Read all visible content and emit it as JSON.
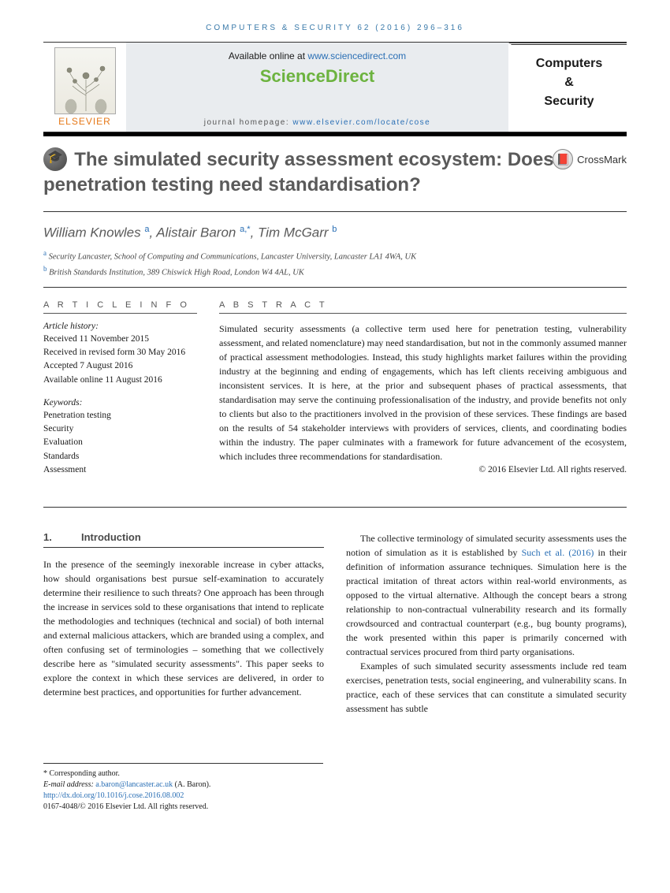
{
  "header": {
    "citation": "COMPUTERS & SECURITY 62 (2016) 296–316",
    "available_prefix": "Available online at ",
    "available_url": "www.sciencedirect.com",
    "sd_logo": "ScienceDirect",
    "homepage_prefix": "journal homepage: ",
    "homepage_url": "www.elsevier.com/locate/cose",
    "elsevier": "ELSEVIER",
    "journal_name_l1": "Computers",
    "journal_name_l2": "&",
    "journal_name_l3": "Security"
  },
  "title": "The simulated security assessment ecosystem: Does penetration testing need standardisation?",
  "crossmark": "CrossMark",
  "authors_html": "William Knowles <span class='sup'>a</span>, Alistair Baron <span class='sup'>a,*</span>, Tim McGarr <span class='sup'>b</span>",
  "affiliations": [
    {
      "sup": "a",
      "text": "Security Lancaster, School of Computing and Communications, Lancaster University, Lancaster LA1 4WA, UK"
    },
    {
      "sup": "b",
      "text": "British Standards Institution, 389 Chiswick High Road, London W4 4AL, UK"
    }
  ],
  "info": {
    "heading": "A R T I C L E   I N F O",
    "history_label": "Article history:",
    "history": "Received 11 November 2015\nReceived in revised form 30 May 2016\nAccepted 7 August 2016\nAvailable online 11 August 2016",
    "keywords_label": "Keywords:",
    "keywords": "Penetration testing\nSecurity\nEvaluation\nStandards\nAssessment"
  },
  "abstract": {
    "heading": "A B S T R A C T",
    "text": "Simulated security assessments (a collective term used here for penetration testing, vulnerability assessment, and related nomenclature) may need standardisation, but not in the commonly assumed manner of practical assessment methodologies. Instead, this study highlights market failures within the providing industry at the beginning and ending of engagements, which has left clients receiving ambiguous and inconsistent services. It is here, at the prior and subsequent phases of practical assessments, that standardisation may serve the continuing professionalisation of the industry, and provide benefits not only to clients but also to the practitioners involved in the provision of these services. These findings are based on the results of 54 stakeholder interviews with providers of services, clients, and coordinating bodies within the industry. The paper culminates with a framework for future advancement of the ecosystem, which includes three recommendations for standardisation.",
    "copyright": "© 2016 Elsevier Ltd. All rights reserved."
  },
  "intro": {
    "num": "1.",
    "title": "Introduction",
    "col1": "In the presence of the seemingly inexorable increase in cyber attacks, how should organisations best pursue self-examination to accurately determine their resilience to such threats? One approach has been through the increase in services sold to these organisations that intend to replicate the methodologies and techniques (technical and social) of both internal and external malicious attackers, which are branded using a complex, and often confusing set of terminologies – something that we collectively describe here as \"simulated security assessments\". This paper seeks to explore the context in which these services are delivered, in order to determine best practices, and opportunities for further advancement.",
    "col2_p1_pre": "The collective terminology of simulated security assessments uses the notion of simulation as it is established by ",
    "col2_p1_ref": "Such et al. (2016)",
    "col2_p1_post": " in their definition of information assurance techniques. Simulation here is the practical imitation of threat actors within real-world environments, as opposed to the virtual alternative. Although the concept bears a strong relationship to non-contractual vulnerability research and its formally crowdsourced and contractual counterpart (e.g., bug bounty programs), the work presented within this paper is primarily concerned with contractual services procured from third party organisations.",
    "col2_p2": "Examples of such simulated security assessments include red team exercises, penetration tests, social engineering, and vulnerability scans. In practice, each of these services that can constitute a simulated security assessment has subtle"
  },
  "footnotes": {
    "corresp": "* Corresponding author.",
    "email_label": "E-mail address:",
    "email": "a.baron@lancaster.ac.uk",
    "email_name": "(A. Baron).",
    "doi": "http://dx.doi.org/10.1016/j.cose.2016.08.002",
    "issn": "0167-4048/© 2016 Elsevier Ltd. All rights reserved."
  }
}
